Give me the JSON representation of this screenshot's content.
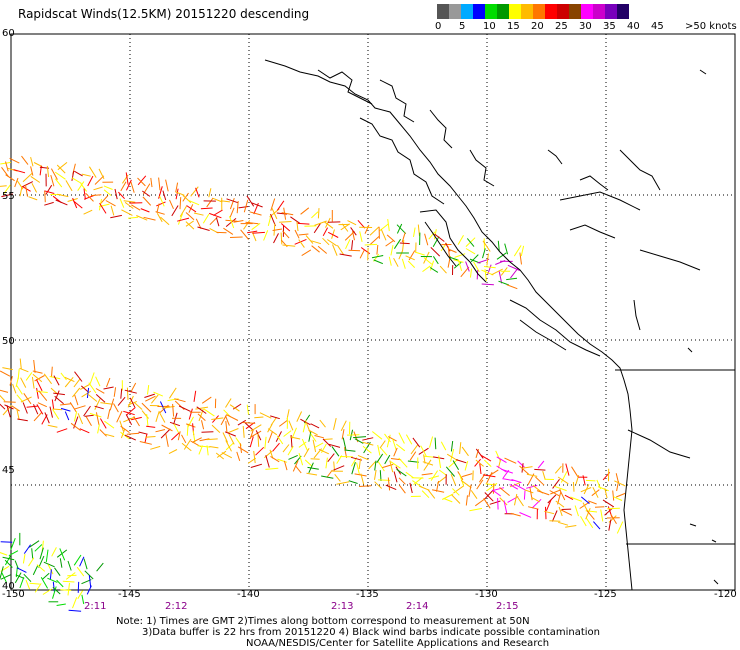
{
  "title": "Rapidscat Winds(12.5KM) 20151220 descending",
  "colorbar": {
    "colors": [
      "#555555",
      "#999999",
      "#00aaff",
      "#0000ff",
      "#00dd00",
      "#009900",
      "#ffff00",
      "#ffbb00",
      "#ff7700",
      "#ff0000",
      "#cc0000",
      "#884400",
      "#ff00ff",
      "#cc00cc",
      "#7700bb",
      "#220066"
    ],
    "labels": [
      "0",
      "5",
      "10",
      "15",
      "20",
      "25",
      "30",
      "35",
      "40",
      "45",
      ">50 knots"
    ]
  },
  "map": {
    "lon_labels": [
      "-150",
      "-145",
      "-140",
      "-135",
      "-130",
      "-125",
      "-120"
    ],
    "lat_labels": [
      "60",
      "55",
      "50",
      "45",
      "40"
    ],
    "time_labels": [
      "2:11",
      "2:12",
      "2:13",
      "2:14",
      "2:15"
    ]
  },
  "notes": {
    "line1": "Note: 1) Times are GMT 2)Times along bottom correspond to measurement at 50N",
    "line2": "3)Data buffer is 22 hrs from 20151220 4) Black wind barbs indicate possible contamination",
    "line3": "NOAA/NESDIS/Center for Satellite Applications and Research"
  }
}
